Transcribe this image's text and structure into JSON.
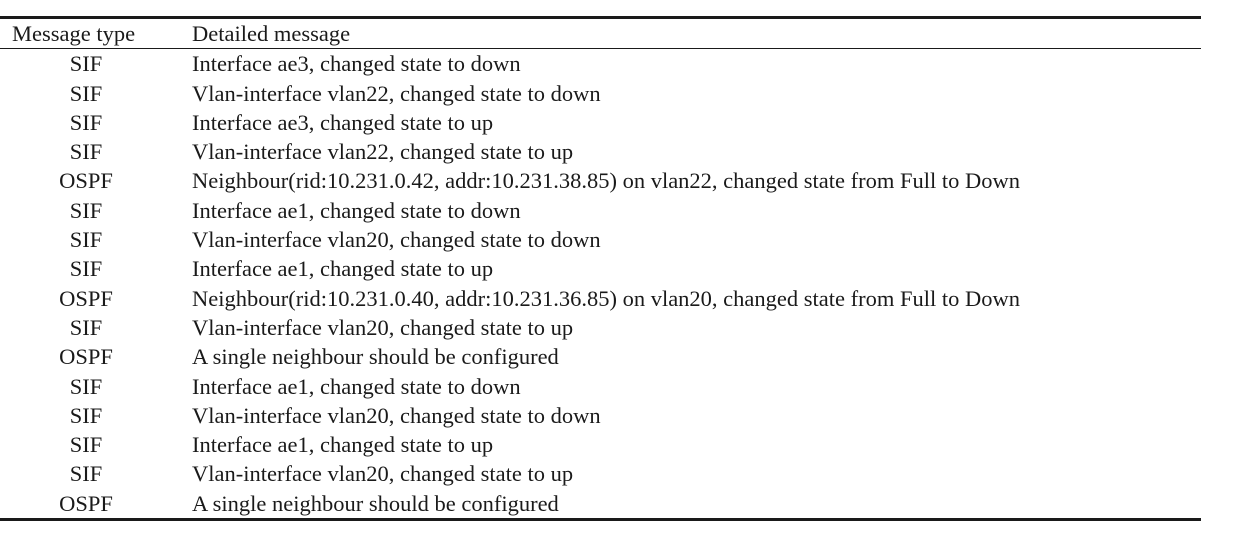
{
  "table": {
    "headers": {
      "type": "Message type",
      "message": "Detailed message"
    },
    "rows": [
      {
        "type": "SIF",
        "message": "Interface ae3, changed state to down"
      },
      {
        "type": "SIF",
        "message": "Vlan-interface vlan22, changed state to down"
      },
      {
        "type": "SIF",
        "message": "Interface ae3, changed state to up"
      },
      {
        "type": "SIF",
        "message": "Vlan-interface vlan22, changed state to up"
      },
      {
        "type": "OSPF",
        "message": "Neighbour(rid:10.231.0.42, addr:10.231.38.85) on vlan22, changed state from Full to Down"
      },
      {
        "type": "SIF",
        "message": "Interface ae1, changed state to down"
      },
      {
        "type": "SIF",
        "message": "Vlan-interface vlan20, changed state to down"
      },
      {
        "type": "SIF",
        "message": "Interface ae1, changed state to up"
      },
      {
        "type": "OSPF",
        "message": "Neighbour(rid:10.231.0.40, addr:10.231.36.85) on vlan20, changed state from Full to Down"
      },
      {
        "type": "SIF",
        "message": "Vlan-interface vlan20, changed state to up"
      },
      {
        "type": "OSPF",
        "message": "A single neighbour should be configured"
      },
      {
        "type": "SIF",
        "message": "Interface ae1, changed state to down"
      },
      {
        "type": "SIF",
        "message": "Vlan-interface vlan20, changed state to down"
      },
      {
        "type": "SIF",
        "message": "Interface ae1, changed state to up"
      },
      {
        "type": "SIF",
        "message": "Vlan-interface vlan20, changed state to up"
      },
      {
        "type": "OSPF",
        "message": "A single neighbour should be configured"
      }
    ]
  }
}
